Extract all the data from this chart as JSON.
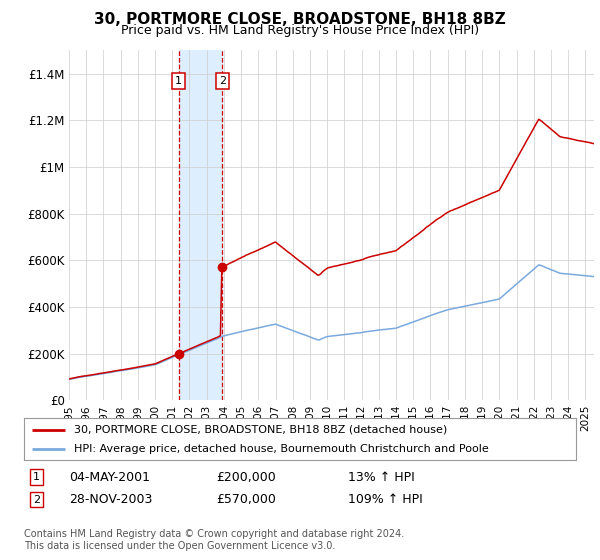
{
  "title": "30, PORTMORE CLOSE, BROADSTONE, BH18 8BZ",
  "subtitle": "Price paid vs. HM Land Registry's House Price Index (HPI)",
  "legend_line1": "30, PORTMORE CLOSE, BROADSTONE, BH18 8BZ (detached house)",
  "legend_line2": "HPI: Average price, detached house, Bournemouth Christchurch and Poole",
  "annotation1_date": "04-MAY-2001",
  "annotation1_price": "£200,000",
  "annotation1_hpi": "13% ↑ HPI",
  "annotation2_date": "28-NOV-2003",
  "annotation2_price": "£570,000",
  "annotation2_hpi": "109% ↑ HPI",
  "footer": "Contains HM Land Registry data © Crown copyright and database right 2024.\nThis data is licensed under the Open Government Licence v3.0.",
  "red_color": "#cc0000",
  "blue_color": "#7aaadd",
  "shade_color": "#ddeeff",
  "grid_color": "#cccccc",
  "bg_color": "#ffffff",
  "anno_box_color": "#cc0000",
  "ylim": [
    0,
    1500000
  ],
  "yticks": [
    0,
    200000,
    400000,
    600000,
    800000,
    1000000,
    1200000,
    1400000
  ],
  "ytick_labels": [
    "£0",
    "£200K",
    "£400K",
    "£600K",
    "£800K",
    "£1M",
    "£1.2M",
    "£1.4M"
  ],
  "sale1_year": 2001.37,
  "sale1_price": 200000,
  "sale2_year": 2003.91,
  "sale2_price": 570000,
  "xmin": 1995.0,
  "xmax": 2025.5
}
